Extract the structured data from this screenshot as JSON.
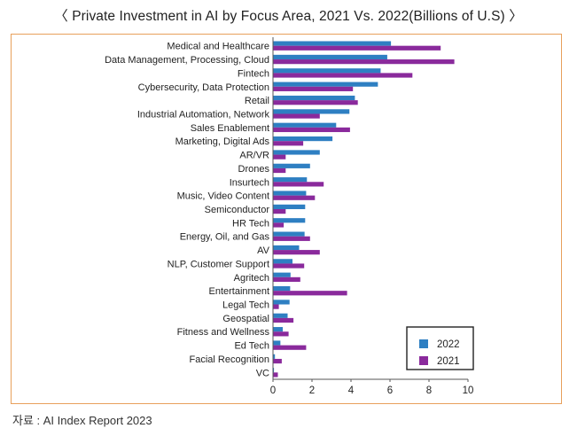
{
  "title": "〈 Private Investment in AI by Focus Area, 2021 Vs. 2022(Billions of U.S) 〉",
  "source": "자료 : AI Index Report 2023",
  "colors": {
    "s2022": "#2e7fc2",
    "s2021": "#8a2a9c",
    "frame": "#e8a05b"
  },
  "chart_data": {
    "type": "bar",
    "orientation": "horizontal",
    "title": "〈 Private Investment in AI by Focus Area, 2021 Vs. 2022(Billions of U.S) 〉",
    "xlabel": "",
    "ylabel": "",
    "xlim": [
      0,
      10
    ],
    "xticks": [
      "0",
      "2",
      "4",
      "6",
      "8",
      "10"
    ],
    "grid": false,
    "legend_position": "bottom-right",
    "categories": [
      "Medical and Healthcare",
      "Data Management, Processing, Cloud",
      "Fintech",
      "Cybersecurity, Data Protection",
      "Retail",
      "Industrial Automation, Network",
      "Sales Enablement",
      "Marketing, Digital Ads",
      "AR/VR",
      "Drones",
      "Insurtech",
      "Music, Video Content",
      "Semiconductor",
      "HR Tech",
      "Energy, Oil, and Gas",
      "AV",
      "NLP, Customer Support",
      "Agritech",
      "Entertainment",
      "Legal Tech",
      "Geospatial",
      "Fitness and Wellness",
      "Ed Tech",
      "Facial Recognition",
      "VC"
    ],
    "series": [
      {
        "name": "2022",
        "values": [
          6.05,
          5.86,
          5.52,
          5.38,
          4.2,
          3.92,
          3.24,
          3.05,
          2.4,
          1.9,
          1.74,
          1.7,
          1.65,
          1.65,
          1.62,
          1.34,
          1.0,
          0.9,
          0.88,
          0.85,
          0.75,
          0.5,
          0.38,
          0.1,
          0.05
        ]
      },
      {
        "name": "2021",
        "values": [
          8.6,
          9.3,
          7.15,
          4.1,
          4.35,
          2.4,
          3.95,
          1.55,
          0.65,
          0.65,
          2.6,
          2.15,
          0.65,
          0.55,
          1.9,
          2.4,
          1.6,
          1.4,
          3.8,
          0.3,
          1.05,
          0.8,
          1.7,
          0.45,
          0.25
        ]
      }
    ]
  }
}
